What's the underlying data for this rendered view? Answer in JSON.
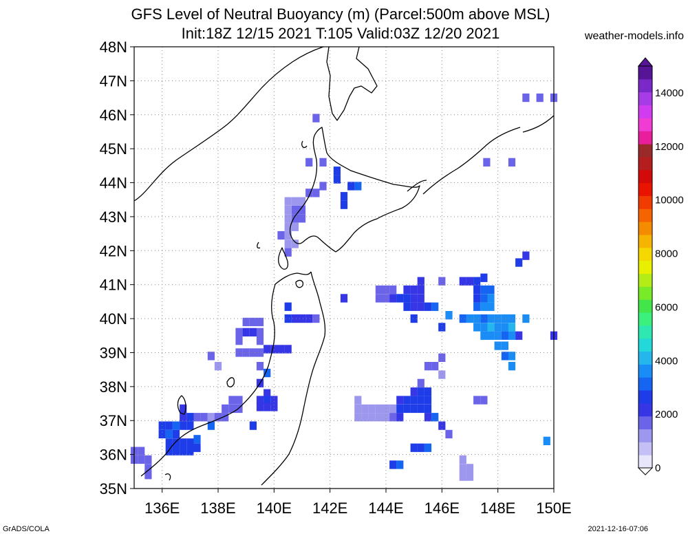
{
  "title": {
    "line1": "GFS Level of Neutral Buoyancy (m) (Parcel:500m above MSL)",
    "line2": "Init:18Z 12/15 2021 T:105 Valid:03Z 12/20 2021"
  },
  "credit": "weather-models.info",
  "footer_left": "GrADS/COLA",
  "footer_right": "2021-12-16-07:06",
  "lat_labels": [
    "48N",
    "47N",
    "46N",
    "45N",
    "44N",
    "43N",
    "42N",
    "41N",
    "40N",
    "39N",
    "38N",
    "37N",
    "36N",
    "35N"
  ],
  "lon_labels": [
    "136E",
    "138E",
    "140E",
    "142E",
    "144E",
    "146E",
    "148E",
    "150E"
  ],
  "colorbar": {
    "labels": [
      "0",
      "2000",
      "4000",
      "6000",
      "8000",
      "10000",
      "12000",
      "14000"
    ],
    "colors": [
      "#e8e6fa",
      "#c4c0f5",
      "#9d98ee",
      "#6b64e8",
      "#3636e6",
      "#1e3ce8",
      "#1565f2",
      "#1a8cf5",
      "#26b6ee",
      "#22d8d8",
      "#2de8b0",
      "#3cf07e",
      "#42e64a",
      "#78ea28",
      "#b4ec18",
      "#e8f000",
      "#f5d800",
      "#f5b400",
      "#f58c00",
      "#f56400",
      "#f03c00",
      "#e81400",
      "#d20a0a",
      "#b41e1e",
      "#9a2a2a",
      "#e81e9c",
      "#f03cd2",
      "#d23cf0",
      "#a53ce6",
      "#7a28c8",
      "#561496"
    ]
  },
  "data_cells": [
    {
      "lon": 149.0,
      "lat": 46.5,
      "v": 1800
    },
    {
      "lon": 149.5,
      "lat": 46.5,
      "v": 1800
    },
    {
      "lon": 150.0,
      "lat": 46.5,
      "v": 1800
    },
    {
      "lon": 141.5,
      "lat": 45.9,
      "v": 1500
    },
    {
      "lon": 141.25,
      "lat": 44.6,
      "v": 1900
    },
    {
      "lon": 141.75,
      "lat": 44.6,
      "v": 1900
    },
    {
      "lon": 148.5,
      "lat": 44.6,
      "v": 1800
    },
    {
      "lon": 147.6,
      "lat": 44.6,
      "v": 1900
    },
    {
      "lon": 142.25,
      "lat": 44.35,
      "v": 2600
    },
    {
      "lon": 142.25,
      "lat": 44.1,
      "v": 2600
    },
    {
      "lon": 143.0,
      "lat": 43.9,
      "v": 3000
    },
    {
      "lon": 142.75,
      "lat": 43.9,
      "v": 2800
    },
    {
      "lon": 142.5,
      "lat": 43.6,
      "v": 2700
    },
    {
      "lon": 142.5,
      "lat": 43.35,
      "v": 2700
    },
    {
      "lon": 141.75,
      "lat": 43.9,
      "v": 1900
    },
    {
      "lon": 141.5,
      "lat": 43.7,
      "v": 1700
    },
    {
      "lon": 141.25,
      "lat": 43.7,
      "v": 1700
    },
    {
      "lon": 141.0,
      "lat": 43.45,
      "v": 1300
    },
    {
      "lon": 140.75,
      "lat": 43.45,
      "v": 1300
    },
    {
      "lon": 140.5,
      "lat": 43.45,
      "v": 1300
    },
    {
      "lon": 141.0,
      "lat": 43.2,
      "v": 1500
    },
    {
      "lon": 140.75,
      "lat": 43.2,
      "v": 1500
    },
    {
      "lon": 140.5,
      "lat": 43.2,
      "v": 1300
    },
    {
      "lon": 141.0,
      "lat": 42.95,
      "v": 1700
    },
    {
      "lon": 140.75,
      "lat": 42.95,
      "v": 1500
    },
    {
      "lon": 140.5,
      "lat": 42.95,
      "v": 1200
    },
    {
      "lon": 140.75,
      "lat": 42.7,
      "v": 1300
    },
    {
      "lon": 140.5,
      "lat": 42.7,
      "v": 1200
    },
    {
      "lon": 140.25,
      "lat": 42.45,
      "v": 1600
    },
    {
      "lon": 140.5,
      "lat": 42.45,
      "v": 1200
    },
    {
      "lon": 140.75,
      "lat": 42.2,
      "v": 1300
    },
    {
      "lon": 140.5,
      "lat": 42.2,
      "v": 1300
    },
    {
      "lon": 140.5,
      "lat": 41.95,
      "v": 1500
    },
    {
      "lon": 149.0,
      "lat": 41.85,
      "v": 2300
    },
    {
      "lon": 148.75,
      "lat": 41.65,
      "v": 2700
    },
    {
      "lon": 147.5,
      "lat": 41.2,
      "v": 2800
    },
    {
      "lon": 147.0,
      "lat": 41.1,
      "v": 2300
    },
    {
      "lon": 147.25,
      "lat": 41.1,
      "v": 2600
    },
    {
      "lon": 145.25,
      "lat": 41.1,
      "v": 2200
    },
    {
      "lon": 146.0,
      "lat": 41.1,
      "v": 1800
    },
    {
      "lon": 146.75,
      "lat": 41.1,
      "v": 2100
    },
    {
      "lon": 147.5,
      "lat": 40.85,
      "v": 3000
    },
    {
      "lon": 147.25,
      "lat": 40.85,
      "v": 2500
    },
    {
      "lon": 147.75,
      "lat": 40.85,
      "v": 3300
    },
    {
      "lon": 143.75,
      "lat": 40.85,
      "v": 1800
    },
    {
      "lon": 144.0,
      "lat": 40.85,
      "v": 1700
    },
    {
      "lon": 144.25,
      "lat": 40.85,
      "v": 1500
    },
    {
      "lon": 144.75,
      "lat": 40.85,
      "v": 2300
    },
    {
      "lon": 145.0,
      "lat": 40.85,
      "v": 2400
    },
    {
      "lon": 145.25,
      "lat": 40.85,
      "v": 2200
    },
    {
      "lon": 142.5,
      "lat": 40.6,
      "v": 2200
    },
    {
      "lon": 143.75,
      "lat": 40.6,
      "v": 1800
    },
    {
      "lon": 144.0,
      "lat": 40.6,
      "v": 1700
    },
    {
      "lon": 144.25,
      "lat": 40.6,
      "v": 2000
    },
    {
      "lon": 144.5,
      "lat": 40.6,
      "v": 2600
    },
    {
      "lon": 144.75,
      "lat": 40.6,
      "v": 2700
    },
    {
      "lon": 145.0,
      "lat": 40.6,
      "v": 2400
    },
    {
      "lon": 145.25,
      "lat": 40.6,
      "v": 2200
    },
    {
      "lon": 147.5,
      "lat": 40.6,
      "v": 3300
    },
    {
      "lon": 147.75,
      "lat": 40.6,
      "v": 3600
    },
    {
      "lon": 147.25,
      "lat": 40.6,
      "v": 2900
    },
    {
      "lon": 144.75,
      "lat": 40.35,
      "v": 2500
    },
    {
      "lon": 145.0,
      "lat": 40.35,
      "v": 2200
    },
    {
      "lon": 145.25,
      "lat": 40.35,
      "v": 2300
    },
    {
      "lon": 145.5,
      "lat": 40.35,
      "v": 2500
    },
    {
      "lon": 145.75,
      "lat": 40.35,
      "v": 3100
    },
    {
      "lon": 147.5,
      "lat": 40.35,
      "v": 3500
    },
    {
      "lon": 147.75,
      "lat": 40.35,
      "v": 3700
    },
    {
      "lon": 147.25,
      "lat": 40.35,
      "v": 3200
    },
    {
      "lon": 146.25,
      "lat": 40.1,
      "v": 3400
    },
    {
      "lon": 140.5,
      "lat": 40.35,
      "v": 2600
    },
    {
      "lon": 140.5,
      "lat": 40.0,
      "v": 2700
    },
    {
      "lon": 140.75,
      "lat": 40.0,
      "v": 2300
    },
    {
      "lon": 141.0,
      "lat": 40.0,
      "v": 2200
    },
    {
      "lon": 141.25,
      "lat": 40.0,
      "v": 2200
    },
    {
      "lon": 141.5,
      "lat": 40.0,
      "v": 1900
    },
    {
      "lon": 145.0,
      "lat": 40.0,
      "v": 2900
    },
    {
      "lon": 146.75,
      "lat": 40.0,
      "v": 3300
    },
    {
      "lon": 147.0,
      "lat": 40.0,
      "v": 3500
    },
    {
      "lon": 147.25,
      "lat": 40.0,
      "v": 3700
    },
    {
      "lon": 147.5,
      "lat": 40.0,
      "v": 3300
    },
    {
      "lon": 147.75,
      "lat": 40.0,
      "v": 3500
    },
    {
      "lon": 148.0,
      "lat": 40.0,
      "v": 3600
    },
    {
      "lon": 148.25,
      "lat": 40.0,
      "v": 3800
    },
    {
      "lon": 148.5,
      "lat": 40.0,
      "v": 3500
    },
    {
      "lon": 149.0,
      "lat": 40.0,
      "v": 3400
    },
    {
      "lon": 147.25,
      "lat": 39.75,
      "v": 3400
    },
    {
      "lon": 147.5,
      "lat": 39.75,
      "v": 3800
    },
    {
      "lon": 147.75,
      "lat": 39.75,
      "v": 3900
    },
    {
      "lon": 148.0,
      "lat": 39.75,
      "v": 3700
    },
    {
      "lon": 148.25,
      "lat": 39.75,
      "v": 3600
    },
    {
      "lon": 148.5,
      "lat": 39.75,
      "v": 3900
    },
    {
      "lon": 146.0,
      "lat": 39.75,
      "v": 2500
    },
    {
      "lon": 139.0,
      "lat": 39.9,
      "v": 1900
    },
    {
      "lon": 139.25,
      "lat": 39.9,
      "v": 1900
    },
    {
      "lon": 139.5,
      "lat": 39.9,
      "v": 1900
    },
    {
      "lon": 138.75,
      "lat": 39.6,
      "v": 1900
    },
    {
      "lon": 139.0,
      "lat": 39.6,
      "v": 2000
    },
    {
      "lon": 139.25,
      "lat": 39.6,
      "v": 2000
    },
    {
      "lon": 139.5,
      "lat": 39.6,
      "v": 1900
    },
    {
      "lon": 147.5,
      "lat": 39.5,
      "v": 3500
    },
    {
      "lon": 147.75,
      "lat": 39.5,
      "v": 3600
    },
    {
      "lon": 148.0,
      "lat": 39.5,
      "v": 3700
    },
    {
      "lon": 148.25,
      "lat": 39.5,
      "v": 3300
    },
    {
      "lon": 148.5,
      "lat": 39.5,
      "v": 3500
    },
    {
      "lon": 148.75,
      "lat": 39.5,
      "v": 2200
    },
    {
      "lon": 150.0,
      "lat": 39.5,
      "v": 2000
    },
    {
      "lon": 138.75,
      "lat": 39.35,
      "v": 1900
    },
    {
      "lon": 139.5,
      "lat": 39.35,
      "v": 1900
    },
    {
      "lon": 139.75,
      "lat": 39.1,
      "v": 2100
    },
    {
      "lon": 140.0,
      "lat": 39.1,
      "v": 2300
    },
    {
      "lon": 140.25,
      "lat": 39.1,
      "v": 2300
    },
    {
      "lon": 140.5,
      "lat": 39.1,
      "v": 2300
    },
    {
      "lon": 148.0,
      "lat": 39.2,
      "v": 3600
    },
    {
      "lon": 148.25,
      "lat": 39.2,
      "v": 3400
    },
    {
      "lon": 138.75,
      "lat": 39.0,
      "v": 1900
    },
    {
      "lon": 139.0,
      "lat": 39.0,
      "v": 1900
    },
    {
      "lon": 139.25,
      "lat": 39.0,
      "v": 1900
    },
    {
      "lon": 139.5,
      "lat": 39.0,
      "v": 1900
    },
    {
      "lon": 148.25,
      "lat": 38.9,
      "v": 3200
    },
    {
      "lon": 148.5,
      "lat": 38.9,
      "v": 3400
    },
    {
      "lon": 148.5,
      "lat": 38.6,
      "v": 3500
    },
    {
      "lon": 137.75,
      "lat": 38.9,
      "v": 1500
    },
    {
      "lon": 138.0,
      "lat": 38.6,
      "v": 1300
    },
    {
      "lon": 139.5,
      "lat": 38.6,
      "v": 1700
    },
    {
      "lon": 145.5,
      "lat": 38.6,
      "v": 1600
    },
    {
      "lon": 145.75,
      "lat": 38.6,
      "v": 1600
    },
    {
      "lon": 146.0,
      "lat": 38.85,
      "v": 1700
    },
    {
      "lon": 146.0,
      "lat": 38.35,
      "v": 1200
    },
    {
      "lon": 139.75,
      "lat": 38.4,
      "v": 3200
    },
    {
      "lon": 139.5,
      "lat": 38.1,
      "v": 2100
    },
    {
      "lon": 145.25,
      "lat": 38.1,
      "v": 1800
    },
    {
      "lon": 145.0,
      "lat": 37.85,
      "v": 2400
    },
    {
      "lon": 145.25,
      "lat": 37.85,
      "v": 2700
    },
    {
      "lon": 145.5,
      "lat": 37.85,
      "v": 2800
    },
    {
      "lon": 139.75,
      "lat": 37.8,
      "v": 2100
    },
    {
      "lon": 139.5,
      "lat": 37.6,
      "v": 2200
    },
    {
      "lon": 139.75,
      "lat": 37.6,
      "v": 2600
    },
    {
      "lon": 140.0,
      "lat": 37.6,
      "v": 2300
    },
    {
      "lon": 139.5,
      "lat": 37.4,
      "v": 2400
    },
    {
      "lon": 139.75,
      "lat": 37.4,
      "v": 2400
    },
    {
      "lon": 140.0,
      "lat": 37.4,
      "v": 2400
    },
    {
      "lon": 143.0,
      "lat": 37.6,
      "v": 1400
    },
    {
      "lon": 143.0,
      "lat": 37.35,
      "v": 1200
    },
    {
      "lon": 143.0,
      "lat": 37.1,
      "v": 1300
    },
    {
      "lon": 143.25,
      "lat": 37.1,
      "v": 1300
    },
    {
      "lon": 143.5,
      "lat": 37.1,
      "v": 1300
    },
    {
      "lon": 143.75,
      "lat": 37.1,
      "v": 1100
    },
    {
      "lon": 144.0,
      "lat": 37.1,
      "v": 1100
    },
    {
      "lon": 143.25,
      "lat": 37.35,
      "v": 1200
    },
    {
      "lon": 143.5,
      "lat": 37.35,
      "v": 1300
    },
    {
      "lon": 143.75,
      "lat": 37.35,
      "v": 1200
    },
    {
      "lon": 144.0,
      "lat": 37.35,
      "v": 1300
    },
    {
      "lon": 144.25,
      "lat": 37.35,
      "v": 1300
    },
    {
      "lon": 144.5,
      "lat": 37.6,
      "v": 2300
    },
    {
      "lon": 144.75,
      "lat": 37.6,
      "v": 2600
    },
    {
      "lon": 145.0,
      "lat": 37.6,
      "v": 2700
    },
    {
      "lon": 145.25,
      "lat": 37.6,
      "v": 2900
    },
    {
      "lon": 145.5,
      "lat": 37.6,
      "v": 2600
    },
    {
      "lon": 144.5,
      "lat": 37.35,
      "v": 2600
    },
    {
      "lon": 144.75,
      "lat": 37.35,
      "v": 2800
    },
    {
      "lon": 145.0,
      "lat": 37.35,
      "v": 2700
    },
    {
      "lon": 145.25,
      "lat": 37.35,
      "v": 2700
    },
    {
      "lon": 145.5,
      "lat": 37.35,
      "v": 2500
    },
    {
      "lon": 144.25,
      "lat": 37.1,
      "v": 1800
    },
    {
      "lon": 144.5,
      "lat": 37.1,
      "v": 2200
    },
    {
      "lon": 145.5,
      "lat": 37.1,
      "v": 2400
    },
    {
      "lon": 145.75,
      "lat": 37.1,
      "v": 3000
    },
    {
      "lon": 147.25,
      "lat": 37.6,
      "v": 1900
    },
    {
      "lon": 147.5,
      "lat": 37.6,
      "v": 1900
    },
    {
      "lon": 138.5,
      "lat": 37.6,
      "v": 1500
    },
    {
      "lon": 138.75,
      "lat": 37.6,
      "v": 1600
    },
    {
      "lon": 138.25,
      "lat": 37.35,
      "v": 1600
    },
    {
      "lon": 138.5,
      "lat": 37.35,
      "v": 1600
    },
    {
      "lon": 138.75,
      "lat": 37.35,
      "v": 1500
    },
    {
      "lon": 137.25,
      "lat": 37.1,
      "v": 1600
    },
    {
      "lon": 137.5,
      "lat": 37.1,
      "v": 1600
    },
    {
      "lon": 137.75,
      "lat": 37.1,
      "v": 1300
    },
    {
      "lon": 138.0,
      "lat": 37.1,
      "v": 1500
    },
    {
      "lon": 138.25,
      "lat": 37.1,
      "v": 1600
    },
    {
      "lon": 136.75,
      "lat": 37.35,
      "v": 2000
    },
    {
      "lon": 136.75,
      "lat": 37.1,
      "v": 2400
    },
    {
      "lon": 137.0,
      "lat": 37.1,
      "v": 2600
    },
    {
      "lon": 136.0,
      "lat": 36.85,
      "v": 2600
    },
    {
      "lon": 136.25,
      "lat": 36.85,
      "v": 2900
    },
    {
      "lon": 136.5,
      "lat": 36.85,
      "v": 3000
    },
    {
      "lon": 136.75,
      "lat": 36.85,
      "v": 2900
    },
    {
      "lon": 137.0,
      "lat": 36.85,
      "v": 2600
    },
    {
      "lon": 137.75,
      "lat": 36.85,
      "v": 3000
    },
    {
      "lon": 139.25,
      "lat": 36.85,
      "v": 2700
    },
    {
      "lon": 146.0,
      "lat": 36.85,
      "v": 2300
    },
    {
      "lon": 136.0,
      "lat": 36.6,
      "v": 2800
    },
    {
      "lon": 136.25,
      "lat": 36.6,
      "v": 3100
    },
    {
      "lon": 136.5,
      "lat": 36.6,
      "v": 2900
    },
    {
      "lon": 137.25,
      "lat": 36.45,
      "v": 3100
    },
    {
      "lon": 146.25,
      "lat": 36.6,
      "v": 1900
    },
    {
      "lon": 136.25,
      "lat": 36.35,
      "v": 2900
    },
    {
      "lon": 136.5,
      "lat": 36.35,
      "v": 2600
    },
    {
      "lon": 136.75,
      "lat": 36.35,
      "v": 2700
    },
    {
      "lon": 137.0,
      "lat": 36.35,
      "v": 2800
    },
    {
      "lon": 137.25,
      "lat": 36.2,
      "v": 2900
    },
    {
      "lon": 136.25,
      "lat": 36.1,
      "v": 2500
    },
    {
      "lon": 136.5,
      "lat": 36.1,
      "v": 2600
    },
    {
      "lon": 136.75,
      "lat": 36.1,
      "v": 2500
    },
    {
      "lon": 137.0,
      "lat": 36.1,
      "v": 2700
    },
    {
      "lon": 135.0,
      "lat": 36.1,
      "v": 1700
    },
    {
      "lon": 135.25,
      "lat": 36.1,
      "v": 1700
    },
    {
      "lon": 135.0,
      "lat": 35.85,
      "v": 1500
    },
    {
      "lon": 135.25,
      "lat": 35.85,
      "v": 1500
    },
    {
      "lon": 135.5,
      "lat": 35.85,
      "v": 1800
    },
    {
      "lon": 135.5,
      "lat": 35.6,
      "v": 1700
    },
    {
      "lon": 135.5,
      "lat": 35.4,
      "v": 1500
    },
    {
      "lon": 145.0,
      "lat": 36.2,
      "v": 2500
    },
    {
      "lon": 145.25,
      "lat": 36.2,
      "v": 2700
    },
    {
      "lon": 145.5,
      "lat": 36.2,
      "v": 3200
    },
    {
      "lon": 149.75,
      "lat": 36.4,
      "v": 3500
    },
    {
      "lon": 144.25,
      "lat": 35.7,
      "v": 2900
    },
    {
      "lon": 144.5,
      "lat": 35.7,
      "v": 3000
    },
    {
      "lon": 146.75,
      "lat": 35.85,
      "v": 1400
    },
    {
      "lon": 146.75,
      "lat": 35.6,
      "v": 1400
    },
    {
      "lon": 147.0,
      "lat": 35.6,
      "v": 1300
    },
    {
      "lon": 146.75,
      "lat": 35.35,
      "v": 1300
    },
    {
      "lon": 147.0,
      "lat": 35.35,
      "v": 1400
    }
  ]
}
